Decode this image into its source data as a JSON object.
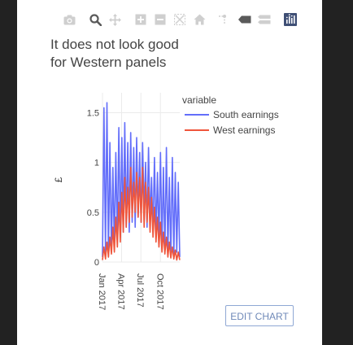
{
  "modebar": {
    "buttons": [
      {
        "icon": "camera-icon",
        "name": "download-png-button"
      },
      {
        "icon": "zoom-icon",
        "name": "zoom-button"
      },
      {
        "icon": "pan-icon",
        "name": "pan-button"
      },
      {
        "icon": "zoom-in-icon",
        "name": "zoom-in-button"
      },
      {
        "icon": "zoom-out-icon",
        "name": "zoom-out-button"
      },
      {
        "icon": "autoscale-icon",
        "name": "autoscale-button"
      },
      {
        "icon": "home-icon",
        "name": "reset-axes-button"
      },
      {
        "icon": "spike-lines-icon",
        "name": "toggle-spike-lines-button"
      },
      {
        "icon": "hover-closest-icon",
        "name": "hover-closest-button"
      },
      {
        "icon": "hover-compare-icon",
        "name": "hover-compare-button"
      },
      {
        "icon": "plotly-logo-icon",
        "name": "plotly-logo"
      }
    ]
  },
  "colors": {
    "south": "#636efa",
    "west": "#ef553b",
    "grid": "#ebebeb",
    "text": "#444444"
  },
  "edit_button": {
    "label": "EDIT CHART"
  },
  "chart_data": {
    "type": "line",
    "title": "It does not look good for Western panels",
    "title_lines": [
      "It does not look good",
      "for Western panels"
    ],
    "xlabel": "",
    "ylabel": "£",
    "xlim": [
      "2017-01-01",
      "2017-12-31"
    ],
    "ylim": [
      0,
      1.7
    ],
    "yticks": [
      0,
      0.5,
      1,
      1.5
    ],
    "ytick_labels": [
      "0",
      "0.5",
      "1",
      "1.5"
    ],
    "xticks": [
      "2017-01-01",
      "2017-04-01",
      "2017-07-01",
      "2017-10-01"
    ],
    "xtick_labels": [
      "Jan 2017",
      "Apr 2017",
      "Jul 2017",
      "Oct 2017"
    ],
    "grid": true,
    "legend_title": "variable",
    "legend_placement": "top-right",
    "series": [
      {
        "name": "South earnings",
        "x": [
          "2017-01-01",
          "2017-01-08",
          "2017-01-15",
          "2017-01-22",
          "2017-01-29",
          "2017-02-05",
          "2017-02-12",
          "2017-02-19",
          "2017-02-26",
          "2017-03-05",
          "2017-03-12",
          "2017-03-19",
          "2017-03-26",
          "2017-04-02",
          "2017-04-09",
          "2017-04-16",
          "2017-04-23",
          "2017-04-30",
          "2017-05-07",
          "2017-05-14",
          "2017-05-21",
          "2017-05-28",
          "2017-06-04",
          "2017-06-11",
          "2017-06-18",
          "2017-06-25",
          "2017-07-02",
          "2017-07-09",
          "2017-07-16",
          "2017-07-23",
          "2017-07-30",
          "2017-08-06",
          "2017-08-13",
          "2017-08-20",
          "2017-08-27",
          "2017-09-03",
          "2017-09-10",
          "2017-09-17",
          "2017-09-24",
          "2017-10-01",
          "2017-10-08",
          "2017-10-15",
          "2017-10-22",
          "2017-10-29",
          "2017-11-05",
          "2017-11-12",
          "2017-11-19",
          "2017-11-26",
          "2017-12-03",
          "2017-12-10",
          "2017-12-17",
          "2017-12-24",
          "2017-12-31"
        ],
        "y": [
          0.05,
          1.55,
          0.1,
          1.6,
          0.05,
          1.2,
          0.1,
          0.95,
          0.15,
          1.1,
          0.2,
          1.35,
          0.25,
          1.25,
          0.3,
          1.4,
          0.35,
          1.2,
          0.3,
          1.3,
          0.4,
          1.15,
          0.35,
          1.25,
          0.45,
          1.1,
          0.4,
          1.2,
          0.5,
          1.0,
          0.35,
          1.15,
          0.4,
          0.85,
          0.3,
          1.05,
          0.25,
          0.9,
          0.2,
          1.1,
          0.15,
          0.95,
          0.1,
          1.15,
          0.1,
          0.85,
          0.05,
          1.05,
          0.05,
          0.9,
          0.1,
          0.8,
          0.05
        ]
      },
      {
        "name": "West earnings",
        "x": [
          "2017-01-01",
          "2017-01-08",
          "2017-01-15",
          "2017-01-22",
          "2017-01-29",
          "2017-02-05",
          "2017-02-12",
          "2017-02-19",
          "2017-02-26",
          "2017-03-05",
          "2017-03-12",
          "2017-03-19",
          "2017-03-26",
          "2017-04-02",
          "2017-04-09",
          "2017-04-16",
          "2017-04-23",
          "2017-04-30",
          "2017-05-07",
          "2017-05-14",
          "2017-05-21",
          "2017-05-28",
          "2017-06-04",
          "2017-06-11",
          "2017-06-18",
          "2017-06-25",
          "2017-07-02",
          "2017-07-09",
          "2017-07-16",
          "2017-07-23",
          "2017-07-30",
          "2017-08-06",
          "2017-08-13",
          "2017-08-20",
          "2017-08-27",
          "2017-09-03",
          "2017-09-10",
          "2017-09-17",
          "2017-09-24",
          "2017-10-01",
          "2017-10-08",
          "2017-10-15",
          "2017-10-22",
          "2017-10-29",
          "2017-11-05",
          "2017-11-12",
          "2017-11-19",
          "2017-11-26",
          "2017-12-03",
          "2017-12-10",
          "2017-12-17",
          "2017-12-24",
          "2017-12-31"
        ],
        "y": [
          0.02,
          0.15,
          0.03,
          0.2,
          0.05,
          0.25,
          0.08,
          0.35,
          0.1,
          0.45,
          0.15,
          0.6,
          0.2,
          0.7,
          0.3,
          0.85,
          0.35,
          0.75,
          0.4,
          0.95,
          0.45,
          0.8,
          0.5,
          0.9,
          0.45,
          0.85,
          0.4,
          0.95,
          0.35,
          0.8,
          0.4,
          0.75,
          0.3,
          0.65,
          0.25,
          0.55,
          0.2,
          0.45,
          0.15,
          0.4,
          0.1,
          0.3,
          0.08,
          0.25,
          0.05,
          0.2,
          0.04,
          0.15,
          0.03,
          0.12,
          0.02,
          0.1,
          0.02
        ]
      }
    ]
  }
}
